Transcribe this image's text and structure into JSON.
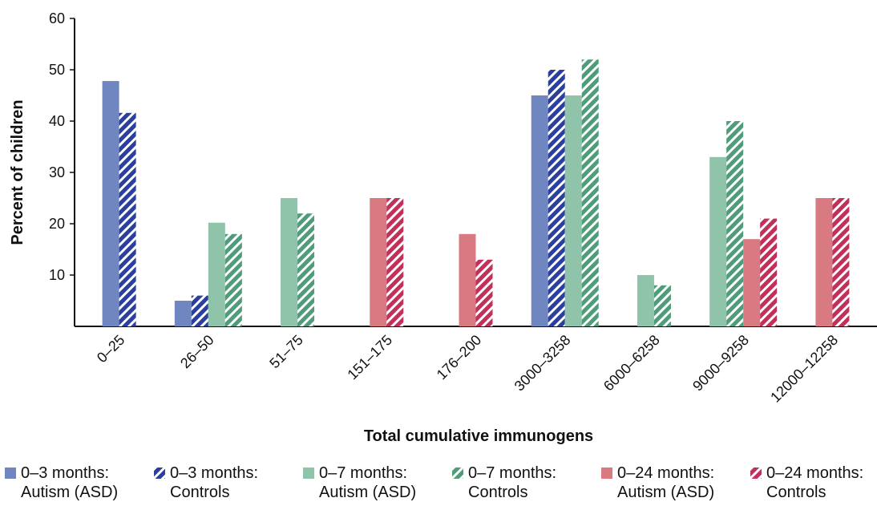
{
  "chart_data": {
    "type": "bar",
    "x_label": "Total cumulative immunogens",
    "y_label": "Percent of children",
    "categories": [
      "0–25",
      "26–50",
      "51–75",
      "151–175",
      "176–200",
      "3000–3258",
      "6000–6258",
      "9000–9258",
      "12000–12258"
    ],
    "series": [
      {
        "name": "0–3 months: Autism (ASD)",
        "color": "#6f86c0",
        "pattern": "solid",
        "values": [
          47.8,
          5,
          null,
          null,
          null,
          45,
          null,
          null,
          null
        ]
      },
      {
        "name": "0–3 months: Controls",
        "color": "#2a3f9e",
        "pattern": "hatched",
        "values": [
          41.6,
          6,
          null,
          null,
          null,
          50,
          null,
          null,
          null
        ]
      },
      {
        "name": "0–7 months: Autism (ASD)",
        "color": "#8fc4aa",
        "pattern": "solid",
        "values": [
          null,
          20.2,
          25,
          null,
          null,
          45,
          10,
          33,
          null
        ]
      },
      {
        "name": "0–7 months: Controls",
        "color": "#4f9c7a",
        "pattern": "hatched",
        "values": [
          null,
          18,
          22,
          null,
          null,
          52,
          8,
          40,
          null
        ]
      },
      {
        "name": "0–24 months: Autism (ASD)",
        "color": "#d97a82",
        "pattern": "solid",
        "values": [
          null,
          null,
          null,
          25,
          18,
          null,
          null,
          17,
          25
        ]
      },
      {
        "name": "0–24 months: Controls",
        "color": "#c2305a",
        "pattern": "hatched",
        "values": [
          null,
          null,
          null,
          25,
          13,
          null,
          null,
          21,
          25
        ]
      }
    ],
    "ylim": [
      0,
      60
    ],
    "yticks": [
      10,
      20,
      30,
      40,
      50,
      60
    ],
    "grid": false
  }
}
